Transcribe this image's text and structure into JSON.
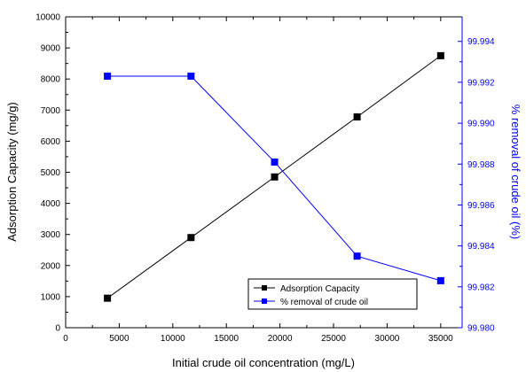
{
  "chart_data": {
    "type": "line",
    "title": "",
    "xlabel": "Initial crude oil concentration (mg/L)",
    "ylabel_left": "Adsorption Capacity (mg/g)",
    "ylabel_right": "% removal of crude oil (%)",
    "xlim": [
      0,
      37000
    ],
    "ylim_left": [
      0,
      10000
    ],
    "ylim_right": [
      99.98,
      99.9952
    ],
    "x_ticks": [
      0,
      5000,
      10000,
      15000,
      20000,
      25000,
      30000,
      35000
    ],
    "y_left_ticks": [
      0,
      1000,
      2000,
      3000,
      4000,
      5000,
      6000,
      7000,
      8000,
      9000,
      10000
    ],
    "y_right_ticks": [
      99.98,
      99.982,
      99.984,
      99.986,
      99.988,
      99.99,
      99.992,
      99.994
    ],
    "y_right_tick_labels": [
      "99.980",
      "99.982",
      "99.984",
      "99.986",
      "99.988",
      "99.990",
      "99.992",
      "99.994"
    ],
    "legend_position": "bottom-right",
    "grid": false,
    "series": [
      {
        "name": "Adsorption Capacity",
        "axis": "left",
        "color": "#000000",
        "x": [
          3900,
          11700,
          19500,
          27200,
          35000
        ],
        "y": [
          950,
          2900,
          4850,
          6780,
          8750
        ]
      },
      {
        "name": "% removal of crude oil",
        "axis": "right",
        "color": "#0000ff",
        "x": [
          3900,
          11700,
          19500,
          27200,
          35000
        ],
        "y": [
          99.9923,
          99.9923,
          99.9881,
          99.9835,
          99.9823
        ]
      }
    ]
  }
}
